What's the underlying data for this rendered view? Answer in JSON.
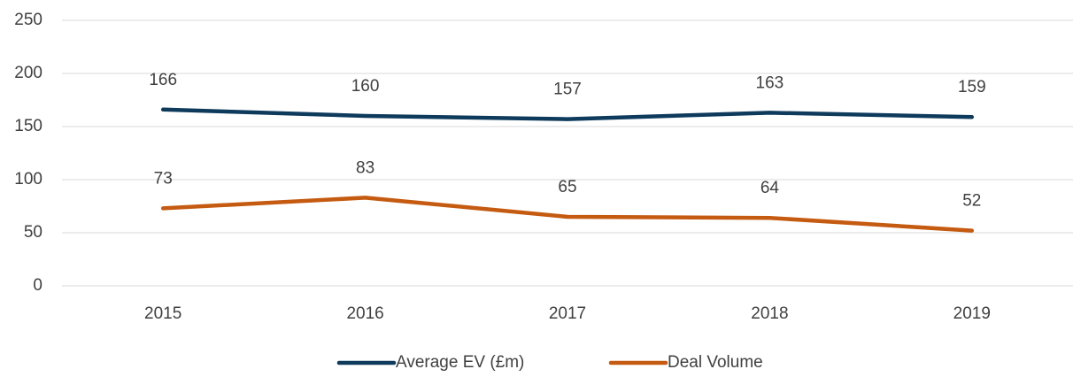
{
  "chart_data": {
    "type": "line",
    "categories": [
      "2015",
      "2016",
      "2017",
      "2018",
      "2019"
    ],
    "series": [
      {
        "name": "Average EV (£m)",
        "color": "#0e3a5c",
        "values": [
          166,
          160,
          157,
          163,
          159
        ]
      },
      {
        "name": "Deal Volume",
        "color": "#c55a11",
        "values": [
          73,
          83,
          65,
          64,
          52
        ]
      }
    ],
    "ylim": [
      0,
      250
    ],
    "yticks": [
      0,
      50,
      100,
      150,
      200,
      250
    ],
    "grid": true,
    "data_labels": true,
    "legend": "bottom"
  }
}
